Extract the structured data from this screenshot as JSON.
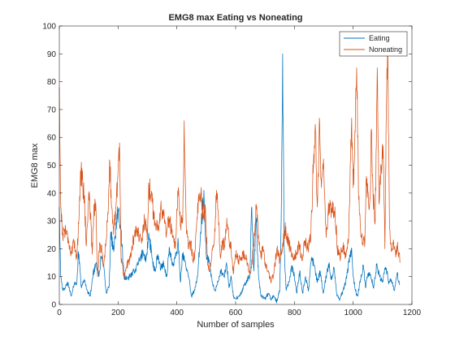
{
  "chart_data": {
    "type": "line",
    "title": "EMG8 max Eating vs Noneating",
    "xlabel": "Number of samples",
    "ylabel": "EMG8 max",
    "xlim": [
      0,
      1200
    ],
    "ylim": [
      0,
      100
    ],
    "xticks": [
      0,
      200,
      400,
      600,
      800,
      1000,
      1200
    ],
    "yticks": [
      0,
      10,
      20,
      30,
      40,
      50,
      60,
      70,
      80,
      90,
      100
    ],
    "grid": false,
    "legend_position": "top-right",
    "series": [
      {
        "name": "Eating",
        "color": "#0072BD",
        "anchors": [
          [
            0,
            35
          ],
          [
            5,
            10
          ],
          [
            12,
            5
          ],
          [
            20,
            6
          ],
          [
            30,
            8
          ],
          [
            40,
            3
          ],
          [
            50,
            7
          ],
          [
            60,
            8
          ],
          [
            65,
            19
          ],
          [
            75,
            6
          ],
          [
            85,
            9
          ],
          [
            95,
            5
          ],
          [
            105,
            3
          ],
          [
            115,
            11
          ],
          [
            125,
            15
          ],
          [
            135,
            10
          ],
          [
            142,
            17
          ],
          [
            150,
            14
          ],
          [
            160,
            4
          ],
          [
            170,
            7
          ],
          [
            175,
            26
          ],
          [
            185,
            19
          ],
          [
            195,
            29
          ],
          [
            200,
            34
          ],
          [
            210,
            27
          ],
          [
            220,
            10
          ],
          [
            230,
            9
          ],
          [
            240,
            10
          ],
          [
            255,
            12
          ],
          [
            270,
            15
          ],
          [
            285,
            19
          ],
          [
            295,
            16
          ],
          [
            305,
            25
          ],
          [
            315,
            17
          ],
          [
            325,
            12
          ],
          [
            335,
            18
          ],
          [
            345,
            13
          ],
          [
            355,
            15
          ],
          [
            365,
            10
          ],
          [
            375,
            20
          ],
          [
            385,
            14
          ],
          [
            395,
            17
          ],
          [
            405,
            22
          ],
          [
            412,
            8
          ],
          [
            420,
            18
          ],
          [
            430,
            14
          ],
          [
            440,
            10
          ],
          [
            450,
            3
          ],
          [
            460,
            5
          ],
          [
            470,
            10
          ],
          [
            480,
            25
          ],
          [
            487,
            33
          ],
          [
            492,
            41
          ],
          [
            500,
            18
          ],
          [
            510,
            16
          ],
          [
            520,
            8
          ],
          [
            530,
            5
          ],
          [
            540,
            8
          ],
          [
            550,
            12
          ],
          [
            560,
            10
          ],
          [
            570,
            14
          ],
          [
            578,
            6
          ],
          [
            585,
            10
          ],
          [
            592,
            3
          ],
          [
            600,
            2
          ],
          [
            615,
            3
          ],
          [
            630,
            7
          ],
          [
            640,
            9
          ],
          [
            648,
            10
          ],
          [
            655,
            35
          ],
          [
            662,
            12
          ],
          [
            670,
            31
          ],
          [
            678,
            10
          ],
          [
            686,
            3
          ],
          [
            700,
            2
          ],
          [
            712,
            4
          ],
          [
            720,
            2
          ],
          [
            730,
            3
          ],
          [
            740,
            1
          ],
          [
            750,
            5
          ],
          [
            755,
            30
          ],
          [
            760,
            90
          ],
          [
            765,
            20
          ],
          [
            772,
            5
          ],
          [
            782,
            8
          ],
          [
            792,
            14
          ],
          [
            800,
            10
          ],
          [
            808,
            4
          ],
          [
            818,
            12
          ],
          [
            828,
            4
          ],
          [
            838,
            10
          ],
          [
            848,
            5
          ],
          [
            858,
            17
          ],
          [
            868,
            14
          ],
          [
            878,
            8
          ],
          [
            888,
            12
          ],
          [
            898,
            4
          ],
          [
            908,
            10
          ],
          [
            918,
            15
          ],
          [
            925,
            9
          ],
          [
            935,
            13
          ],
          [
            945,
            3
          ],
          [
            955,
            2
          ],
          [
            965,
            5
          ],
          [
            975,
            8
          ],
          [
            985,
            15
          ],
          [
            995,
            20
          ],
          [
            1000,
            10
          ],
          [
            1010,
            4
          ],
          [
            1015,
            3
          ],
          [
            1025,
            9
          ],
          [
            1035,
            14
          ],
          [
            1042,
            6
          ],
          [
            1050,
            11
          ],
          [
            1060,
            10
          ],
          [
            1070,
            6
          ],
          [
            1080,
            14
          ],
          [
            1090,
            10
          ],
          [
            1100,
            8
          ],
          [
            1108,
            13
          ],
          [
            1115,
            12
          ],
          [
            1120,
            8
          ],
          [
            1130,
            9
          ],
          [
            1140,
            5
          ],
          [
            1150,
            11
          ],
          [
            1158,
            7
          ]
        ]
      },
      {
        "name": "Noneating",
        "color": "#D95319",
        "anchors": [
          [
            0,
            78
          ],
          [
            4,
            40
          ],
          [
            10,
            25
          ],
          [
            20,
            27
          ],
          [
            30,
            24
          ],
          [
            40,
            18
          ],
          [
            50,
            22
          ],
          [
            60,
            17
          ],
          [
            68,
            35
          ],
          [
            72,
            48
          ],
          [
            78,
            45
          ],
          [
            85,
            39
          ],
          [
            92,
            21
          ],
          [
            100,
            40
          ],
          [
            106,
            33
          ],
          [
            112,
            18
          ],
          [
            118,
            36
          ],
          [
            125,
            34
          ],
          [
            130,
            10
          ],
          [
            138,
            22
          ],
          [
            145,
            19
          ],
          [
            150,
            14
          ],
          [
            158,
            21
          ],
          [
            165,
            33
          ],
          [
            172,
            51
          ],
          [
            178,
            35
          ],
          [
            185,
            25
          ],
          [
            192,
            35
          ],
          [
            200,
            48
          ],
          [
            205,
            58
          ],
          [
            210,
            17
          ],
          [
            220,
            10
          ],
          [
            230,
            14
          ],
          [
            240,
            16
          ],
          [
            250,
            22
          ],
          [
            260,
            28
          ],
          [
            270,
            25
          ],
          [
            280,
            22
          ],
          [
            290,
            30
          ],
          [
            300,
            25
          ],
          [
            305,
            43
          ],
          [
            315,
            37
          ],
          [
            325,
            30
          ],
          [
            335,
            27
          ],
          [
            345,
            35
          ],
          [
            355,
            32
          ],
          [
            365,
            26
          ],
          [
            375,
            31
          ],
          [
            385,
            24
          ],
          [
            395,
            20
          ],
          [
            405,
            42
          ],
          [
            412,
            28
          ],
          [
            420,
            30
          ],
          [
            425,
            66
          ],
          [
            432,
            28
          ],
          [
            440,
            20
          ],
          [
            448,
            22
          ],
          [
            455,
            16
          ],
          [
            462,
            19
          ],
          [
            468,
            30
          ],
          [
            475,
            37
          ],
          [
            482,
            40
          ],
          [
            490,
            31
          ],
          [
            497,
            35
          ],
          [
            505,
            14
          ],
          [
            512,
            12
          ],
          [
            520,
            20
          ],
          [
            528,
            24
          ],
          [
            535,
            41
          ],
          [
            540,
            34
          ],
          [
            548,
            17
          ],
          [
            555,
            22
          ],
          [
            562,
            21
          ],
          [
            570,
            31
          ],
          [
            578,
            23
          ],
          [
            585,
            20
          ],
          [
            592,
            11
          ],
          [
            600,
            18
          ],
          [
            610,
            16
          ],
          [
            620,
            17
          ],
          [
            630,
            18
          ],
          [
            640,
            15
          ],
          [
            650,
            11
          ],
          [
            660,
            19
          ],
          [
            670,
            36
          ],
          [
            678,
            25
          ],
          [
            686,
            17
          ],
          [
            693,
            21
          ],
          [
            700,
            14
          ],
          [
            710,
            12
          ],
          [
            720,
            8
          ],
          [
            730,
            11
          ],
          [
            740,
            20
          ],
          [
            750,
            16
          ],
          [
            760,
            22
          ],
          [
            768,
            27
          ],
          [
            776,
            24
          ],
          [
            786,
            20
          ],
          [
            796,
            16
          ],
          [
            806,
            18
          ],
          [
            816,
            22
          ],
          [
            826,
            16
          ],
          [
            836,
            23
          ],
          [
            846,
            20
          ],
          [
            856,
            25
          ],
          [
            866,
            54
          ],
          [
            872,
            62
          ],
          [
            878,
            35
          ],
          [
            886,
            65
          ],
          [
            892,
            42
          ],
          [
            900,
            48
          ],
          [
            908,
            24
          ],
          [
            918,
            36
          ],
          [
            928,
            33
          ],
          [
            938,
            35
          ],
          [
            946,
            20
          ],
          [
            955,
            17
          ],
          [
            965,
            21
          ],
          [
            975,
            17
          ],
          [
            985,
            25
          ],
          [
            995,
            67
          ],
          [
            1000,
            42
          ],
          [
            1005,
            55
          ],
          [
            1012,
            85
          ],
          [
            1018,
            40
          ],
          [
            1025,
            27
          ],
          [
            1032,
            22
          ],
          [
            1040,
            23
          ],
          [
            1045,
            46
          ],
          [
            1052,
            38
          ],
          [
            1058,
            38
          ],
          [
            1062,
            63
          ],
          [
            1068,
            38
          ],
          [
            1075,
            30
          ],
          [
            1082,
            85
          ],
          [
            1088,
            36
          ],
          [
            1095,
            50
          ],
          [
            1102,
            57
          ],
          [
            1108,
            20
          ],
          [
            1112,
            64
          ],
          [
            1118,
            90
          ],
          [
            1124,
            27
          ],
          [
            1130,
            19
          ],
          [
            1138,
            22
          ],
          [
            1145,
            17
          ],
          [
            1150,
            21
          ],
          [
            1155,
            18
          ],
          [
            1160,
            15
          ]
        ]
      }
    ]
  }
}
